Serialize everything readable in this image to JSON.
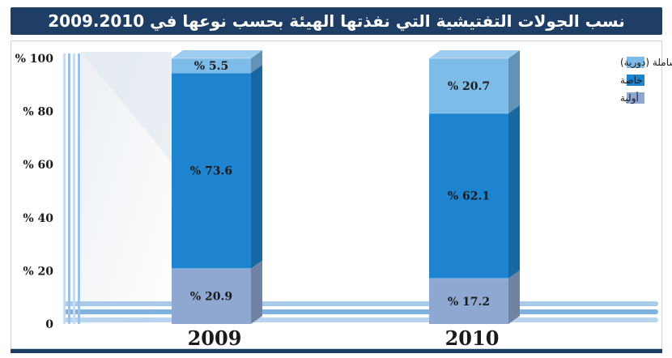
{
  "title": "نسب الجولات التفتيشية التي نفذتها الهيئة بحسب نوعها في 2009.2010",
  "chart_data": {
    "type": "bar",
    "stacked": true,
    "categories": [
      "2009",
      "2010"
    ],
    "series": [
      {
        "name": "أولية",
        "values": [
          20.9,
          17.2
        ],
        "labels": [
          "% 20.9",
          "% 17.2"
        ],
        "color": "#8fa8d2"
      },
      {
        "name": "خاصة",
        "values": [
          73.6,
          62.1
        ],
        "labels": [
          "% 73.6",
          "% 62.1"
        ],
        "color": "#1e84d0"
      },
      {
        "name": "شاملة (دورية)",
        "values": [
          5.5,
          20.7
        ],
        "labels": [
          "% 5.5",
          "% 20.7"
        ],
        "color": "#7dbbe8"
      }
    ],
    "ylim": [
      0,
      100
    ],
    "yticks": [
      0,
      20,
      40,
      60,
      80,
      100
    ],
    "ytick_labels": [
      "0",
      "% 20",
      "% 40",
      "% 60",
      "% 80",
      "% 100"
    ],
    "legend": {
      "placement": "top-right",
      "entries": [
        "شاملة (دورية)",
        "خاصة",
        "أولية"
      ]
    },
    "frame_color": "#1f3e66"
  }
}
